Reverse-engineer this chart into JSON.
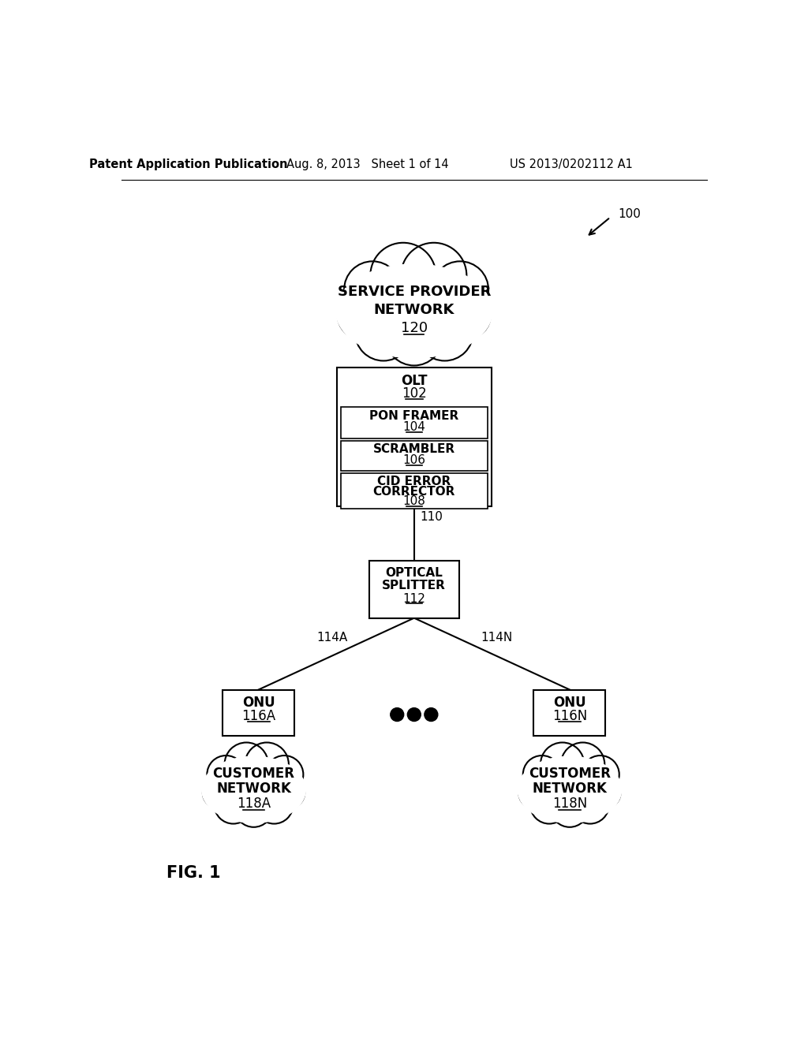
{
  "bg_color": "#ffffff",
  "header_left": "Patent Application Publication",
  "header_mid": "Aug. 8, 2013   Sheet 1 of 14",
  "header_right": "US 2013/0202112 A1",
  "fig_label": "FIG. 1",
  "ref_100": "100",
  "cloud_top_label1": "SERVICE PROVIDER",
  "cloud_top_label2": "NETWORK",
  "cloud_top_ref": "120",
  "olt_box_label": "OLT",
  "olt_box_ref": "102",
  "pon_box_label": "PON FRAMER",
  "pon_box_ref": "104",
  "scram_box_label": "SCRAMBLER",
  "scram_box_ref": "106",
  "cid_box_label1": "CID ERROR",
  "cid_box_label2": "CORRECTOR",
  "cid_box_ref": "108",
  "link_110": "110",
  "splitter_label1": "OPTICAL",
  "splitter_label2": "SPLITTER",
  "splitter_ref": "112",
  "link_114A": "114A",
  "link_114N": "114N",
  "onu_left_label": "ONU",
  "onu_left_ref": "116A",
  "onu_right_label": "ONU",
  "onu_right_ref": "116N",
  "cloud_left_label1": "CUSTOMER",
  "cloud_left_label2": "NETWORK",
  "cloud_left_ref": "118A",
  "cloud_right_label1": "CUSTOMER",
  "cloud_right_label2": "NETWORK",
  "cloud_right_ref": "118N"
}
